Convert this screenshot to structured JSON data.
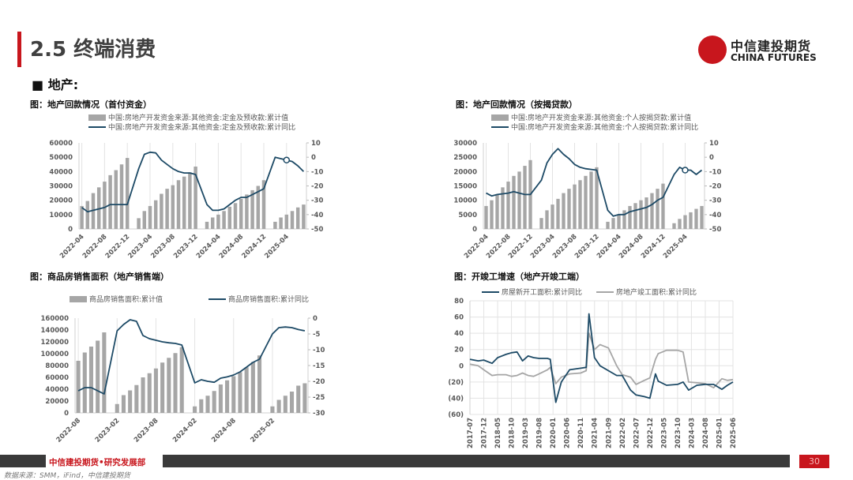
{
  "header": {
    "title": "2.5 终端消费",
    "section": "■  地产:",
    "logo_cn": "中信建投期货",
    "logo_en": "CHINA FUTURES"
  },
  "footer": {
    "dept": "中信建投期货•研究发展部",
    "page": "30",
    "source": "数据来源：SMM，iFind，中信建投期货"
  },
  "colors": {
    "accent": "#c8161d",
    "bar": "#a6a6a6",
    "line": "#1d4a66",
    "grey_line": "#a6a6a6",
    "negative_label": "#c00000"
  },
  "chart_data": [
    {
      "type": "bar+line",
      "title": "图：地产回款情况（首付资金）",
      "period": [
        "2022-04",
        "2025-07"
      ],
      "x_ticks": [
        "2022-04",
        "2022-08",
        "2022-12",
        "2023-04",
        "2023-08",
        "2023-12",
        "2024-04",
        "2024-08",
        "2024-12",
        "2025-04"
      ],
      "ylim_left": [
        0,
        60000
      ],
      "ystep_left": 10000,
      "ylim_right": [
        -50,
        10
      ],
      "ystep_right": 10,
      "highlight": "2025-04",
      "series": [
        {
          "name": "中国:房地产开发资金来源:其他资金:定金及预收款:累计值",
          "axis": "left",
          "kind": "bar",
          "values": [
            16000,
            19500,
            25000,
            29000,
            33000,
            37500,
            41000,
            45000,
            49500,
            null,
            7500,
            12500,
            16000,
            20000,
            24500,
            28000,
            30500,
            34000,
            36500,
            39500,
            43500,
            null,
            5000,
            8000,
            10000,
            12500,
            15500,
            18000,
            21000,
            24000,
            27000,
            30000,
            34000,
            null,
            5000,
            8000,
            10000,
            12500,
            15000,
            17000
          ]
        },
        {
          "name": "中国:房地产开发资金来源:其他资金:定金及预收款:累计同比",
          "axis": "right",
          "kind": "line",
          "values": [
            -35,
            -38,
            -37,
            -36,
            -35,
            -33,
            -33,
            -33,
            -33,
            null,
            -8,
            2,
            3.5,
            3,
            -2,
            -5,
            -8,
            -10,
            -11,
            -11,
            -12,
            null,
            -33,
            -37,
            -37,
            -36,
            -33,
            -30,
            -28,
            -28,
            -26,
            -24,
            -22,
            null,
            0,
            -1,
            -2,
            -3,
            -6,
            -10
          ]
        }
      ]
    },
    {
      "type": "bar+line",
      "title": "图：地产回款情况（按揭贷款）",
      "period": [
        "2022-04",
        "2025-07"
      ],
      "x_ticks": [
        "2022-04",
        "2022-08",
        "2022-12",
        "2023-04",
        "2023-08",
        "2023-12",
        "2024-04",
        "2024-08",
        "2024-12",
        "2025-04"
      ],
      "ylim_left": [
        0,
        30000
      ],
      "ystep_left": 5000,
      "ylim_right": [
        -50,
        10
      ],
      "ystep_right": 10,
      "highlight": "2025-04",
      "series": [
        {
          "name": "中国:房地产开发资金来源:其他资金:个人按揭贷款:累计值",
          "axis": "left",
          "kind": "bar",
          "values": [
            8000,
            10000,
            12000,
            14500,
            16500,
            18500,
            20000,
            22000,
            24000,
            null,
            3800,
            6500,
            8500,
            10500,
            12500,
            14000,
            15500,
            17000,
            18500,
            20000,
            21500,
            null,
            2500,
            3800,
            5000,
            6500,
            8000,
            9000,
            10000,
            11000,
            12500,
            14000,
            15800,
            null,
            2000,
            3500,
            4800,
            5800,
            7000,
            8000
          ]
        },
        {
          "name": "中国:房地产开发资金来源:其他资金:个人按揭贷款:累计同比",
          "axis": "right",
          "kind": "line",
          "values": [
            -25,
            -27,
            -26,
            -25.5,
            -25,
            -24,
            -25,
            -26,
            -26,
            null,
            -16,
            -4,
            2,
            6,
            2,
            -1,
            -5,
            -7,
            -8,
            -8.5,
            -9,
            null,
            -37,
            -41,
            -40,
            -40,
            -38,
            -37,
            -36,
            -35,
            -33,
            -30,
            -28,
            null,
            -12,
            -7,
            -9,
            -9,
            -12,
            -9
          ]
        }
      ]
    },
    {
      "type": "bar+line",
      "title": "图：商品房销售面积（地产销售端）",
      "period": [
        "2022-08",
        "2025-07"
      ],
      "x_ticks": [
        "2022-08",
        "2023-02",
        "2023-08",
        "2024-02",
        "2024-08",
        "2025-02"
      ],
      "ylim_left": [
        0,
        160000
      ],
      "ystep_left": 20000,
      "ylim_right": [
        -30,
        0
      ],
      "ystep_right": 5,
      "series": [
        {
          "name": "商品房销售面积:累计值",
          "axis": "left",
          "kind": "bar",
          "values": [
            88000,
            102000,
            112000,
            122000,
            136000,
            null,
            15000,
            30000,
            38000,
            47000,
            60000,
            67000,
            75000,
            85000,
            93000,
            101000,
            111000,
            null,
            11000,
            23000,
            29000,
            37000,
            48000,
            55000,
            62000,
            69000,
            77000,
            86000,
            97000,
            null,
            11000,
            22000,
            29000,
            36000,
            46000,
            50000
          ]
        },
        {
          "name": "商品房销售面积:累计同比",
          "axis": "right",
          "kind": "line",
          "values": [
            -23,
            -22,
            -22,
            -23,
            -24,
            null,
            -4,
            -2,
            -0.5,
            -1,
            -5.5,
            -6.5,
            -7,
            -7.5,
            -7.8,
            -8,
            -8.5,
            null,
            -20.5,
            -19.5,
            -20,
            -20.3,
            -19,
            -18.6,
            -18,
            -17,
            -15.5,
            -14,
            -13,
            null,
            -5,
            -3,
            -2.8,
            -3,
            -3.6,
            -4
          ]
        }
      ]
    },
    {
      "type": "line",
      "title": "图：开竣工增速（地产开竣工端）",
      "period": [
        "2017-07",
        "2025-06"
      ],
      "x_ticks": [
        "2017-07",
        "2017-12",
        "2018-05",
        "2018-10",
        "2019-03",
        "2019-08",
        "2020-01",
        "2020-06",
        "2020-11",
        "2021-04",
        "2021-09",
        "2022-02",
        "2022-07",
        "2022-12",
        "2023-05",
        "2023-10",
        "2024-03",
        "2024-08",
        "2025-01",
        "2025-06"
      ],
      "ylim": [
        -60,
        80
      ],
      "ystep": 20,
      "y_tick_labels": [
        "(60)",
        "(40)",
        "(20)",
        "0",
        "20",
        "40",
        "60",
        "80"
      ],
      "x": [
        "2017-07",
        "2017-10",
        "2017-12",
        "2018-03",
        "2018-05",
        "2018-08",
        "2018-10",
        "2018-12",
        "2019-02",
        "2019-04",
        "2019-06",
        "2019-08",
        "2019-11",
        "2019-12",
        "2020-02",
        "2020-04",
        "2020-07",
        "2020-11",
        "2021-01",
        "2021-02",
        "2021-04",
        "2021-06",
        "2021-09",
        "2021-12",
        "2022-02",
        "2022-05",
        "2022-07",
        "2022-10",
        "2022-12",
        "2023-02",
        "2023-03",
        "2023-06",
        "2023-10",
        "2023-12",
        "2024-02",
        "2024-05",
        "2024-08",
        "2024-11",
        "2025-02",
        "2025-04",
        "2025-06"
      ],
      "series": [
        {
          "name": "房屋新开工面积:累计同比",
          "color": "#1d4a66",
          "values": [
            8,
            6,
            7,
            3,
            10,
            14,
            16,
            17,
            6,
            12,
            10,
            9,
            9,
            8,
            -45,
            -20,
            -5,
            -3,
            -2,
            64,
            10,
            0,
            -6,
            -12,
            -12,
            -30,
            -36,
            -38,
            -40,
            -10,
            -19,
            -24,
            -23,
            -20,
            -30,
            -24,
            -23,
            -23,
            -29,
            -24,
            -20
          ]
        },
        {
          "name": "房地产竣工面积:累计同比",
          "color": "#a6a6a6",
          "values": [
            2,
            0,
            -5,
            -12,
            -11,
            -11,
            -13,
            -12,
            -9,
            -12,
            -13,
            -10,
            -5,
            -2,
            -22,
            -14,
            -10,
            -9,
            -6,
            40,
            20,
            26,
            22,
            0,
            -11,
            -14,
            -23,
            -18,
            -15,
            8,
            15,
            19,
            19,
            17,
            -20,
            -21,
            -22,
            -27,
            -16,
            -18,
            -17
          ]
        }
      ]
    }
  ]
}
